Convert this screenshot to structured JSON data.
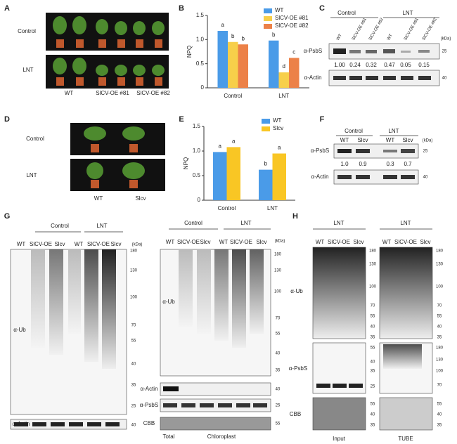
{
  "panel_labels": [
    "A",
    "B",
    "C",
    "D",
    "E",
    "F",
    "G",
    "H"
  ],
  "chart_data": [
    {
      "type": "bar",
      "y_label": "NPQ",
      "categories": [
        "Control",
        "LNT"
      ],
      "series": [
        {
          "name": "WT",
          "color": "#4a9be8",
          "values": [
            1.18,
            0.98
          ],
          "letters": [
            "a",
            "b"
          ]
        },
        {
          "name": "SlCV-OE #81",
          "color": "#f7cf4a",
          "values": [
            0.95,
            0.32
          ],
          "letters": [
            "b",
            "d"
          ]
        },
        {
          "name": "SlCV-OE #82",
          "color": "#ec8148",
          "values": [
            0.9,
            0.62
          ],
          "letters": [
            "b",
            "c"
          ]
        }
      ],
      "ylim": [
        0,
        1.5
      ],
      "yticks": [
        0,
        0.5,
        {
          "value": 1,
          "label": "1.0"
        },
        1.5
      ]
    },
    {
      "type": "bar",
      "y_label": "NPQ",
      "categories": [
        "Control",
        "LNT"
      ],
      "series": [
        {
          "name": "WT",
          "color": "#4a9be8",
          "values": [
            0.98,
            0.62
          ],
          "letters": [
            "a",
            "b"
          ]
        },
        {
          "name": "Slcv",
          "color": "#f9c624",
          "values": [
            1.08,
            0.95
          ],
          "letters": [
            "a",
            "a"
          ]
        }
      ],
      "ylim": [
        0,
        1.5
      ],
      "yticks": [
        0,
        0.5,
        {
          "value": 1,
          "label": "1.0"
        },
        1.5
      ]
    }
  ],
  "panel_a": {
    "rows": [
      "Control",
      "LNT"
    ],
    "genotypes": [
      "WT",
      "SlCV-OE #81",
      "SlCV-OE #82"
    ]
  },
  "panel_c": {
    "groups": [
      "Control",
      "LNT"
    ],
    "lanes": [
      "WT",
      "SlCV-OE #81",
      "SlCV-OE #82",
      "WT",
      "SlCV-OE #81",
      "SlCV-OE #82"
    ],
    "kda": "(kDa)",
    "blots": [
      {
        "antibody": "α-PsbS",
        "marker": "25"
      },
      {
        "antibody": "α-Actin",
        "marker": "40"
      }
    ],
    "quant": [
      "1.00",
      "0.24",
      "0.32",
      "0.47",
      "0.05",
      "0.15"
    ]
  },
  "panel_d": {
    "rows": [
      "Control",
      "LNT"
    ],
    "genotypes": [
      "WT",
      "Slcv"
    ]
  },
  "panel_f": {
    "groups": [
      "Control",
      "LNT"
    ],
    "lanes": [
      "WT",
      "Slcv",
      "WT",
      "Slcv"
    ],
    "kda": "(kDa)",
    "blots": [
      {
        "antibody": "α-PsbS",
        "marker": "25"
      },
      {
        "antibody": "α-Actin",
        "marker": "40"
      }
    ],
    "quant": [
      "1.0",
      "0.9",
      "0.3",
      "0.7"
    ]
  },
  "panel_g": {
    "left": {
      "groups": [
        "Control",
        "LNT"
      ],
      "lanes": [
        "WT",
        "SlCV-OE",
        "Slcv",
        "WT",
        "SlCV-OE",
        "Slcv"
      ],
      "kda": "(kDa)",
      "markers": [
        "180",
        "130",
        "100",
        "70",
        "55",
        "40",
        "35",
        "25"
      ],
      "antibody": "α-Ub",
      "actin": "α-Actin",
      "actin_marker": "40"
    },
    "right": {
      "groups": [
        "Control",
        "LNT"
      ],
      "lanes": [
        "WT",
        "SlCV-OE",
        "Slcv",
        "WT",
        "SlCV-OE",
        "Slcv"
      ],
      "kda": "(kDa)",
      "markers": [
        "180",
        "130",
        "100",
        "70",
        "55",
        "40",
        "35"
      ],
      "antibody": "α-Ub",
      "blots": [
        {
          "antibody": "α-Actin",
          "marker": "40"
        },
        {
          "antibody": "α-PsbS",
          "marker": "25"
        },
        {
          "antibody": "CBB",
          "marker": "55"
        }
      ],
      "total": "Total",
      "chloroplast": "Chloroplast"
    }
  },
  "panel_h": {
    "antibodies": [
      "α-Ub",
      "α-PsbS",
      "CBB"
    ],
    "input": {
      "group": "LNT",
      "lanes": [
        "WT",
        "SlCV-OE",
        "Slcv"
      ],
      "label": "Input",
      "ub_markers": [
        "180",
        "130",
        "100",
        "70",
        "55",
        "40",
        "35"
      ],
      "psbs_markers": [
        "55",
        "40",
        "35",
        "25"
      ],
      "cbb_markers": [
        "55",
        "40",
        "35"
      ]
    },
    "tube": {
      "group": "LNT",
      "lanes": [
        "WT",
        "SlCV-OE",
        "Slcv"
      ],
      "label": "TUBE",
      "ub_markers": [
        "180",
        "130",
        "100",
        "70",
        "55",
        "40",
        "35"
      ],
      "psbs_markers": [
        "180",
        "130",
        "100",
        "70"
      ],
      "cbb_markers": [
        "55",
        "40",
        "35"
      ]
    }
  }
}
